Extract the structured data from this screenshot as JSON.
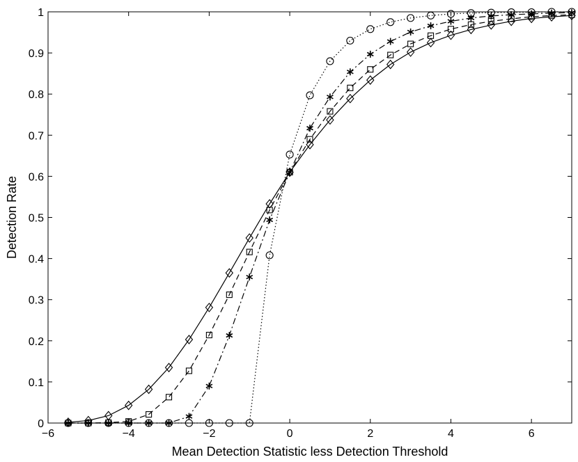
{
  "chart_data": {
    "type": "line",
    "title": "",
    "xlabel": "Mean Detection Statistic less Detection Threshold",
    "ylabel": "Detection Rate",
    "xlim": [
      -6,
      7
    ],
    "ylim": [
      0,
      1
    ],
    "x_ticks": [
      -6,
      -4,
      -2,
      0,
      2,
      4,
      6
    ],
    "y_ticks": [
      0,
      0.1,
      0.2,
      0.3,
      0.4,
      0.5,
      0.6,
      0.7,
      0.8,
      0.9,
      1
    ],
    "grid": false,
    "legend": "none",
    "series": [
      {
        "marker": "diamond",
        "line": "solid",
        "x": [
          -5.5,
          -5,
          -4.5,
          -4,
          -3.5,
          -3,
          -2.5,
          -2,
          -1.5,
          -1,
          -0.5,
          0,
          0.5,
          1,
          1.5,
          2,
          2.5,
          3,
          3.5,
          4,
          4.5,
          5,
          5.5,
          6,
          6.5,
          7
        ],
        "y": [
          0.002,
          0.006,
          0.018,
          0.043,
          0.082,
          0.135,
          0.203,
          0.281,
          0.365,
          0.45,
          0.533,
          0.61,
          0.677,
          0.737,
          0.789,
          0.834,
          0.872,
          0.902,
          0.925,
          0.943,
          0.957,
          0.968,
          0.977,
          0.984,
          0.988,
          0.991
        ]
      },
      {
        "marker": "square",
        "line": "dashed",
        "x": [
          -5.5,
          -5,
          -4.5,
          -4,
          -3.5,
          -3,
          -2.5,
          -2,
          -1.5,
          -1,
          -0.5,
          0,
          0.5,
          1,
          1.5,
          2,
          2.5,
          3,
          3.5,
          4,
          4.5,
          5,
          5.5,
          6,
          6.5,
          7
        ],
        "y": [
          0,
          0,
          0.001,
          0.004,
          0.021,
          0.063,
          0.127,
          0.214,
          0.312,
          0.416,
          0.518,
          0.61,
          0.69,
          0.758,
          0.815,
          0.86,
          0.895,
          0.922,
          0.942,
          0.958,
          0.969,
          0.977,
          0.983,
          0.988,
          0.991,
          0.993
        ]
      },
      {
        "marker": "asterisk",
        "line": "dash-dot",
        "x": [
          -5.5,
          -5,
          -4.5,
          -4,
          -3.5,
          -3,
          -2.5,
          -2,
          -1.5,
          -1,
          -0.5,
          0,
          0.5,
          1,
          1.5,
          2,
          2.5,
          3,
          3.5,
          4,
          4.5,
          5,
          5.5,
          6,
          6.5,
          7
        ],
        "y": [
          0,
          0,
          0,
          0,
          0,
          0,
          0.016,
          0.09,
          0.213,
          0.355,
          0.494,
          0.61,
          0.717,
          0.793,
          0.854,
          0.897,
          0.928,
          0.951,
          0.966,
          0.977,
          0.985,
          0.99,
          0.993,
          0.995,
          0.997,
          0.998
        ]
      },
      {
        "marker": "circle",
        "line": "dotted",
        "x": [
          -5.5,
          -5,
          -4.5,
          -4,
          -3.5,
          -3,
          -2.5,
          -2,
          -1.5,
          -1,
          -0.5,
          0,
          0.5,
          1,
          1.5,
          2,
          2.5,
          3,
          3.5,
          4,
          4.5,
          5,
          5.5,
          6,
          6.5,
          7
        ],
        "y": [
          0,
          0,
          0,
          0,
          0,
          0,
          0,
          0,
          0,
          0,
          0.408,
          0.653,
          0.797,
          0.88,
          0.93,
          0.958,
          0.975,
          0.985,
          0.991,
          0.995,
          0.997,
          0.998,
          0.999,
          0.999,
          1,
          1
        ]
      }
    ]
  }
}
